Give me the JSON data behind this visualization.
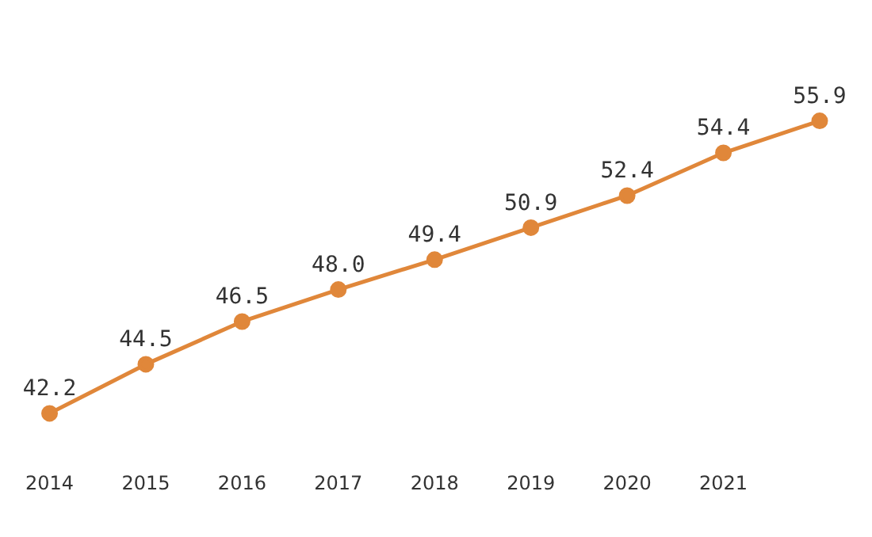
{
  "chart_data": {
    "type": "line",
    "categories": [
      "2014",
      "2015",
      "2016",
      "2017",
      "2018",
      "2019",
      "2020",
      "2021",
      null
    ],
    "series": [
      {
        "color": "#e0873a",
        "values": [
          42.2,
          44.5,
          46.5,
          48.0,
          49.4,
          50.9,
          52.4,
          54.4,
          55.9
        ],
        "value_labels": [
          "42.2",
          "44.5",
          "46.5",
          "48.0",
          "49.4",
          "50.9",
          "52.4",
          "54.4",
          "55.9"
        ]
      }
    ],
    "marker": "circle",
    "grid": false,
    "legend": false
  }
}
